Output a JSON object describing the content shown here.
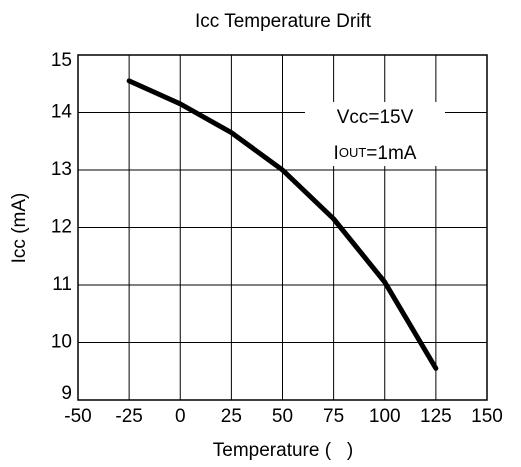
{
  "chart_data": {
    "type": "line",
    "title": "Icc Temperature Drift",
    "x_label": "Temperature (   )",
    "y_label": "Icc (mA)",
    "annotations": [
      [
        "Vcc=15V"
      ],
      [
        "I",
        "OUT",
        "=1mA"
      ]
    ],
    "x": [
      -25,
      0,
      25,
      50,
      75,
      100,
      125
    ],
    "series": [
      {
        "color": "#000000",
        "values": [
          14.55,
          14.15,
          13.65,
          13.0,
          12.15,
          11.05,
          9.55
        ]
      }
    ],
    "xlim": [
      -50,
      150
    ],
    "xticks": [
      -50,
      -25,
      0,
      25,
      50,
      75,
      100,
      125,
      150
    ],
    "ylim": [
      9,
      15
    ],
    "yticks": [
      9,
      10,
      11,
      12,
      13,
      14,
      15
    ],
    "grid": true
  }
}
